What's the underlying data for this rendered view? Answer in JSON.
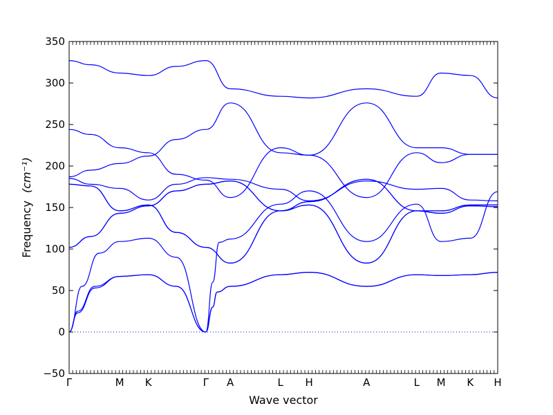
{
  "chart_data": {
    "type": "line",
    "title": "",
    "xlabel": "Wave vector",
    "ylabel": "Frequency",
    "ylabel_unit": "(cm⁻¹)",
    "ylim": [
      -50,
      350
    ],
    "y_ticks": [
      -50,
      0,
      50,
      100,
      150,
      200,
      250,
      300,
      350
    ],
    "grid": false,
    "legend": "none",
    "line_color": "#0000ff",
    "zero_line_style": "dotted",
    "zero_line_value": 0,
    "q_points": [
      {
        "label": "Γ",
        "x": 0
      },
      {
        "label": "M",
        "x": 0.118
      },
      {
        "label": "K",
        "x": 0.185
      },
      {
        "label": "Γ",
        "x": 0.319
      },
      {
        "label": "A",
        "x": 0.376
      },
      {
        "label": "L",
        "x": 0.493
      },
      {
        "label": "H",
        "x": 0.56
      },
      {
        "label": "A",
        "x": 0.694
      },
      {
        "label": "L",
        "x": 0.811
      },
      {
        "label": "M",
        "x": 0.868
      },
      {
        "label": "K",
        "x": 0.936
      },
      {
        "label": "H",
        "x": 1.0
      }
    ],
    "series": [
      {
        "values": [
          [
            0,
            0
          ],
          [
            0.02,
            25
          ],
          [
            0.06,
            55
          ],
          [
            0.118,
            67
          ],
          [
            0.185,
            69
          ],
          [
            0.25,
            55
          ],
          [
            0.319,
            0
          ],
          [
            0.335,
            30
          ],
          [
            0.345,
            48
          ],
          [
            0.376,
            55
          ],
          [
            0.493,
            69
          ],
          [
            0.56,
            72
          ],
          [
            0.694,
            55
          ],
          [
            0.811,
            69
          ],
          [
            0.868,
            68
          ],
          [
            0.936,
            69
          ],
          [
            1.0,
            72
          ]
        ]
      },
      {
        "values": [
          [
            0,
            0
          ],
          [
            0.02,
            23
          ],
          [
            0.06,
            53
          ],
          [
            0.118,
            67
          ],
          [
            0.185,
            69
          ],
          [
            0.25,
            55
          ],
          [
            0.319,
            0
          ],
          [
            0.335,
            30
          ],
          [
            0.345,
            48
          ],
          [
            0.376,
            55
          ],
          [
            0.493,
            69
          ],
          [
            0.56,
            72
          ],
          [
            0.694,
            55
          ],
          [
            0.811,
            69
          ],
          [
            0.868,
            68
          ],
          [
            0.936,
            69
          ],
          [
            1.0,
            72
          ]
        ]
      },
      {
        "values": [
          [
            0,
            0
          ],
          [
            0.03,
            55
          ],
          [
            0.07,
            95
          ],
          [
            0.118,
            109
          ],
          [
            0.185,
            113
          ],
          [
            0.25,
            90
          ],
          [
            0.319,
            0
          ],
          [
            0.335,
            60
          ],
          [
            0.35,
            108
          ],
          [
            0.376,
            112
          ],
          [
            0.493,
            154
          ],
          [
            0.56,
            170
          ],
          [
            0.694,
            109
          ],
          [
            0.811,
            154
          ],
          [
            0.868,
            109
          ],
          [
            0.936,
            113
          ],
          [
            1.0,
            169
          ]
        ]
      },
      {
        "values": [
          [
            0,
            102
          ],
          [
            0.05,
            115
          ],
          [
            0.118,
            143
          ],
          [
            0.185,
            152
          ],
          [
            0.25,
            170
          ],
          [
            0.319,
            178
          ],
          [
            0.376,
            182
          ],
          [
            0.493,
            146
          ],
          [
            0.56,
            157
          ],
          [
            0.694,
            184
          ],
          [
            0.811,
            146
          ],
          [
            0.868,
            146
          ],
          [
            0.936,
            153
          ],
          [
            1.0,
            153
          ]
        ]
      },
      {
        "values": [
          [
            0,
            102
          ],
          [
            0.05,
            115
          ],
          [
            0.118,
            143
          ],
          [
            0.185,
            152
          ],
          [
            0.25,
            170
          ],
          [
            0.319,
            178
          ],
          [
            0.376,
            182
          ],
          [
            0.493,
            146
          ],
          [
            0.56,
            157
          ],
          [
            0.694,
            184
          ],
          [
            0.811,
            146
          ],
          [
            0.868,
            146
          ],
          [
            0.936,
            153
          ],
          [
            1.0,
            153
          ]
        ]
      },
      {
        "values": [
          [
            0,
            178
          ],
          [
            0.05,
            176
          ],
          [
            0.118,
            146
          ],
          [
            0.185,
            153
          ],
          [
            0.25,
            120
          ],
          [
            0.319,
            102
          ],
          [
            0.376,
            83
          ],
          [
            0.493,
            146
          ],
          [
            0.56,
            153
          ],
          [
            0.694,
            83
          ],
          [
            0.811,
            146
          ],
          [
            0.868,
            143
          ],
          [
            0.936,
            152
          ],
          [
            1.0,
            151
          ]
        ]
      },
      {
        "values": [
          [
            0,
            178
          ],
          [
            0.05,
            176
          ],
          [
            0.118,
            146
          ],
          [
            0.185,
            153
          ],
          [
            0.25,
            120
          ],
          [
            0.319,
            102
          ],
          [
            0.376,
            83
          ],
          [
            0.493,
            146
          ],
          [
            0.56,
            153
          ],
          [
            0.694,
            83
          ],
          [
            0.811,
            146
          ],
          [
            0.868,
            143
          ],
          [
            0.936,
            152
          ],
          [
            1.0,
            151
          ]
        ]
      },
      {
        "values": [
          [
            0,
            185
          ],
          [
            0.05,
            178
          ],
          [
            0.118,
            173
          ],
          [
            0.185,
            159
          ],
          [
            0.25,
            178
          ],
          [
            0.319,
            186
          ],
          [
            0.376,
            184
          ],
          [
            0.493,
            172
          ],
          [
            0.56,
            158
          ],
          [
            0.694,
            182
          ],
          [
            0.811,
            172
          ],
          [
            0.868,
            173
          ],
          [
            0.936,
            159
          ],
          [
            1.0,
            158
          ]
        ]
      },
      {
        "values": [
          [
            0,
            187
          ],
          [
            0.05,
            195
          ],
          [
            0.118,
            203
          ],
          [
            0.185,
            212
          ],
          [
            0.25,
            232
          ],
          [
            0.319,
            244
          ],
          [
            0.376,
            276
          ],
          [
            0.493,
            216
          ],
          [
            0.56,
            213
          ],
          [
            0.694,
            162
          ],
          [
            0.811,
            216
          ],
          [
            0.868,
            204
          ],
          [
            0.936,
            214
          ],
          [
            1.0,
            214
          ]
        ]
      },
      {
        "values": [
          [
            0,
            244
          ],
          [
            0.05,
            238
          ],
          [
            0.118,
            222
          ],
          [
            0.185,
            216
          ],
          [
            0.25,
            190
          ],
          [
            0.319,
            183
          ],
          [
            0.376,
            162
          ],
          [
            0.493,
            222
          ],
          [
            0.56,
            213
          ],
          [
            0.694,
            276
          ],
          [
            0.811,
            222
          ],
          [
            0.868,
            222
          ],
          [
            0.936,
            214
          ],
          [
            1.0,
            214
          ]
        ]
      },
      {
        "values": [
          [
            0,
            327
          ],
          [
            0.05,
            322
          ],
          [
            0.118,
            312
          ],
          [
            0.185,
            309
          ],
          [
            0.25,
            320
          ],
          [
            0.319,
            327
          ],
          [
            0.376,
            293
          ],
          [
            0.493,
            284
          ],
          [
            0.56,
            282
          ],
          [
            0.694,
            293
          ],
          [
            0.811,
            284
          ],
          [
            0.868,
            312
          ],
          [
            0.936,
            309
          ],
          [
            1.0,
            282
          ]
        ]
      }
    ]
  }
}
